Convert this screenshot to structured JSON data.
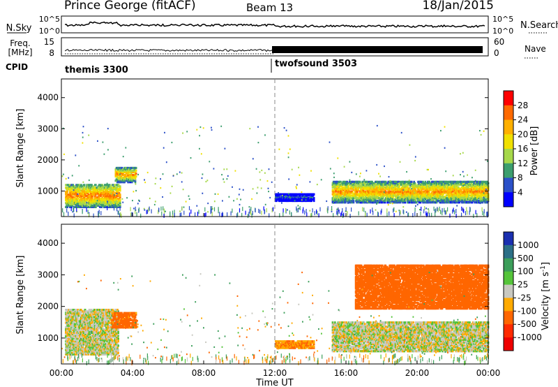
{
  "header": {
    "station": "Prince George (fitACF)",
    "beam": "Beam 13",
    "date": "18/Jan/2015"
  },
  "sky_panel": {
    "left_label": "N.Sky",
    "right_label": "N.Search",
    "left_ticks": [
      "10^5",
      "10^0"
    ],
    "right_ticks": [
      "10^5",
      "10^0"
    ]
  },
  "freq_panel": {
    "left_label_line1": "Freq.",
    "left_label_line2": "[MHz]",
    "right_label": "Nave",
    "left_ticks": [
      "15",
      "8"
    ],
    "right_ticks": [
      "60",
      "0"
    ]
  },
  "cpid": {
    "label": "CPID",
    "modes": [
      {
        "name": "themis 3300"
      },
      {
        "name": "twofsound 3503"
      }
    ]
  },
  "chart_data": [
    {
      "type": "heatmap",
      "title": "",
      "xlabel": "Time UT",
      "ylabel": "Slant Range [km]",
      "xlim": [
        "00:00",
        "24:00"
      ],
      "ylim": [
        180,
        4600
      ],
      "x_ticks": [
        "00:00",
        "04:00",
        "08:00",
        "12:00",
        "16:00",
        "20:00",
        "00:00"
      ],
      "y_ticks": [
        1000,
        2000,
        3000,
        4000
      ],
      "colorbar": {
        "label": "Power [dB]",
        "ticks": [
          "28",
          "24",
          "20",
          "16",
          "12",
          "8",
          "4"
        ],
        "colors": [
          "#ff0000",
          "#ff6a00",
          "#ffb000",
          "#f0e000",
          "#a6d84a",
          "#3c9e6e",
          "#2b50c8",
          "#0000ff"
        ]
      },
      "features": [
        {
          "t_start": 0.2,
          "t_end": 3.3,
          "r_start": 450,
          "r_end": 1200,
          "power_db": 26
        },
        {
          "t_start": 3.0,
          "t_end": 4.2,
          "r_start": 1250,
          "r_end": 1750,
          "power_db": 24
        },
        {
          "t_start": 12.0,
          "t_end": 14.2,
          "r_start": 650,
          "r_end": 900,
          "power_db": 8
        },
        {
          "t_start": 15.2,
          "t_end": 24.0,
          "r_start": 600,
          "r_end": 1300,
          "power_db": 24
        }
      ]
    },
    {
      "type": "heatmap",
      "title": "",
      "xlabel": "Time UT",
      "ylabel": "Slant Range [km]",
      "xlim": [
        "00:00",
        "24:00"
      ],
      "ylim": [
        180,
        4600
      ],
      "x_ticks": [
        "00:00",
        "04:00",
        "08:00",
        "12:00",
        "16:00",
        "20:00",
        "00:00"
      ],
      "y_ticks": [
        1000,
        2000,
        3000,
        4000
      ],
      "colorbar": {
        "label": "Velocity [m s^-1]",
        "ticks": [
          "1000",
          "500",
          "100",
          "25",
          "-25",
          "-100",
          "-500",
          "-1000"
        ],
        "colors": [
          "#1a2fb0",
          "#2c6f86",
          "#3c9e5a",
          "#55c43a",
          "#c8c8c0",
          "#ffaa00",
          "#ff6600",
          "#ff2a00",
          "#ee0000"
        ]
      },
      "features": [
        {
          "t_start": 0.2,
          "t_end": 3.2,
          "r_start": 450,
          "r_end": 1900,
          "velocity": 0
        },
        {
          "t_start": 2.8,
          "t_end": 4.2,
          "r_start": 1300,
          "r_end": 1800,
          "velocity": -150
        },
        {
          "t_start": 12.0,
          "t_end": 14.2,
          "r_start": 650,
          "r_end": 900,
          "velocity": -100
        },
        {
          "t_start": 15.2,
          "t_end": 24.0,
          "r_start": 550,
          "r_end": 1500,
          "velocity": 0
        },
        {
          "t_start": 16.5,
          "t_end": 24.0,
          "r_start": 1900,
          "r_end": 3300,
          "velocity": -200
        }
      ]
    }
  ]
}
